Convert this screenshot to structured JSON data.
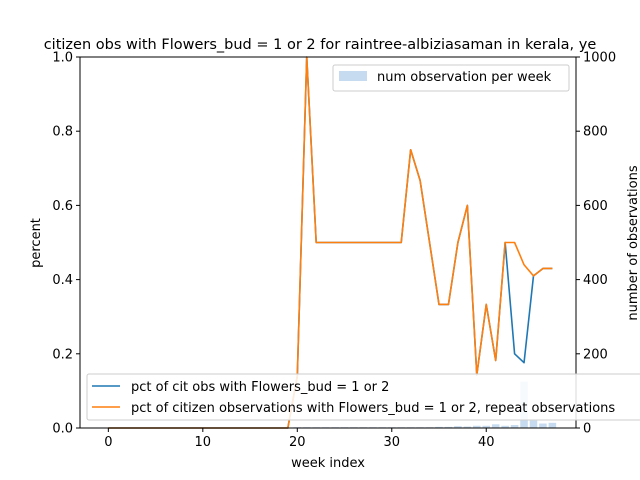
{
  "chart_data": {
    "type": "line",
    "title": "citizen obs with Flowers_bud = 1 or 2 for raintree-albiziasaman in kerala, ye",
    "xlabel": "week index",
    "ylabel": "percent",
    "y2label": "number of observations",
    "xlim": [
      -3,
      49.5
    ],
    "ylim": [
      0,
      1.0
    ],
    "y2lim": [
      0,
      1000
    ],
    "xticks": [
      "0",
      "10",
      "20",
      "30",
      "40"
    ],
    "yticks": [
      "0.0",
      "0.2",
      "0.4",
      "0.6",
      "0.8",
      "1.0"
    ],
    "y2ticks": [
      "0",
      "200",
      "400",
      "600",
      "800",
      "1000"
    ],
    "grid": false,
    "x": [
      0,
      1,
      2,
      3,
      4,
      5,
      6,
      7,
      8,
      9,
      10,
      11,
      12,
      13,
      14,
      15,
      16,
      17,
      18,
      19,
      20,
      21,
      22,
      23,
      24,
      25,
      26,
      27,
      28,
      29,
      30,
      31,
      32,
      33,
      34,
      35,
      36,
      37,
      38,
      39,
      40,
      41,
      42,
      43,
      44,
      45,
      46,
      47
    ],
    "series": [
      {
        "name": "pct of cit obs with Flowers_bud = 1 or 2",
        "color": "#1f77b4",
        "values": [
          0,
          0,
          0,
          0,
          0,
          0,
          0,
          0,
          0,
          0,
          0,
          0,
          0,
          0,
          0,
          0,
          0,
          0,
          0,
          0,
          0.14,
          1.0,
          0.5,
          0.5,
          0.5,
          0.5,
          0.5,
          0.5,
          0.5,
          0.5,
          0.5,
          0.5,
          0.75,
          0.667,
          0.5,
          0.333,
          0.333,
          0.5,
          0.6,
          0.143,
          0.333,
          0.182,
          0.5,
          0.2,
          0.176,
          0.41,
          0.43,
          0.43
        ]
      },
      {
        "name": "pct of citizen observations with Flowers_bud = 1 or 2, repeat observations",
        "color": "#ff7f0e",
        "values": [
          0,
          0,
          0,
          0,
          0,
          0,
          0,
          0,
          0,
          0,
          0,
          0,
          0,
          0,
          0,
          0,
          0,
          0,
          0,
          0,
          0.14,
          1.0,
          0.5,
          0.5,
          0.5,
          0.5,
          0.5,
          0.5,
          0.5,
          0.5,
          0.5,
          0.5,
          0.75,
          0.667,
          0.5,
          0.333,
          0.333,
          0.5,
          0.6,
          0.143,
          0.333,
          0.182,
          0.5,
          0.5,
          0.44,
          0.41,
          0.43,
          0.43
        ]
      }
    ],
    "bars": {
      "name": "num observation per week",
      "color": "#c6dbef",
      "values": [
        1,
        1,
        1,
        1,
        1,
        1,
        1,
        1,
        1,
        1,
        1,
        1,
        1,
        1,
        1,
        1,
        1,
        1,
        1,
        1,
        2,
        2,
        2,
        2,
        2,
        2,
        2,
        2,
        2,
        2,
        2,
        2,
        2,
        2,
        2,
        3,
        3,
        5,
        4,
        6,
        6,
        10,
        6,
        8,
        125,
        20,
        12,
        14
      ]
    },
    "legend_upper": "top-right",
    "legend_lower": "bottom"
  }
}
